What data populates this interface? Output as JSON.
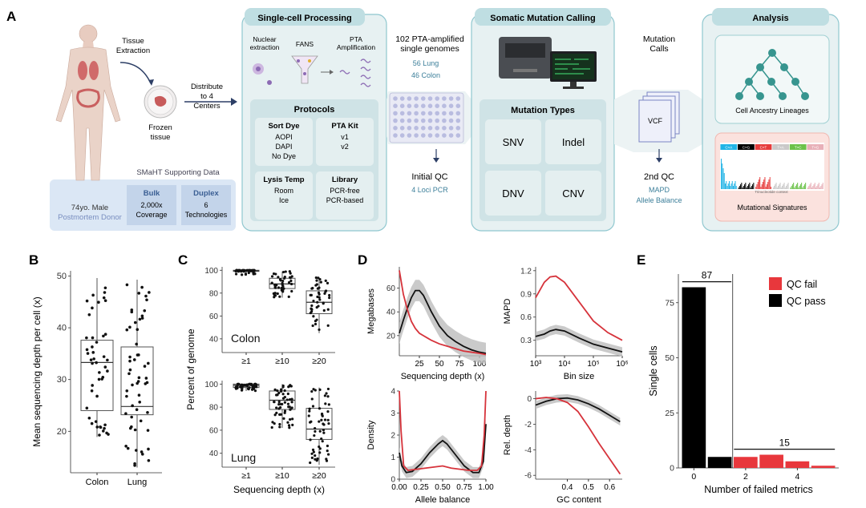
{
  "panels": {
    "a": "A",
    "b": "B",
    "c": "C",
    "d": "D",
    "e": "E"
  },
  "workflow": {
    "tissue_extraction": [
      "Tissue",
      "Extraction"
    ],
    "frozen_tissue": [
      "Frozen",
      "tissue"
    ],
    "distribute": [
      "Distribute",
      "to 4",
      "Centers"
    ],
    "donor": [
      "74yo. Male",
      "Postmortem Donor"
    ],
    "smaht_title": "SMaHT Supporting Data",
    "bulk": {
      "title": "Bulk",
      "lines": [
        "2,000x",
        "Coverage"
      ]
    },
    "duplex": {
      "title": "Duplex",
      "lines": [
        "6",
        "Technologies"
      ]
    },
    "single_cell_title": "Single-cell Processing",
    "nuclear": [
      "Nuclear",
      "extraction"
    ],
    "fans": "FANS",
    "pta": [
      "PTA",
      "Amplification"
    ],
    "protocols_title": "Protocols",
    "protocols": [
      {
        "title": "Sort Dye",
        "lines": [
          "AOPI",
          "DAPI",
          "No Dye"
        ]
      },
      {
        "title": "PTA Kit",
        "lines": [
          "v1",
          "v2"
        ]
      },
      {
        "title": "Lysis Temp",
        "lines": [
          "Room",
          "Ice"
        ]
      },
      {
        "title": "Library",
        "lines": [
          "PCR-free",
          "PCR-based"
        ]
      }
    ],
    "genomes": [
      "102 PTA-amplified",
      "single genomes"
    ],
    "genome_counts": [
      "56 Lung",
      "46 Colon"
    ],
    "initial_qc": "Initial QC",
    "initial_qc_sub": "4 Loci PCR",
    "somatic_title": "Somatic Mutation Calling",
    "mutation_types_title": "Mutation Types",
    "mutation_types": [
      "SNV",
      "Indel",
      "DNV",
      "CNV"
    ],
    "mutation_calls": [
      "Mutation",
      "Calls"
    ],
    "vcf": "VCF",
    "second_qc": "2nd QC",
    "second_qc_sub": [
      "MAPD",
      "Allele Balance"
    ],
    "analysis_title": "Analysis",
    "lineage": "Cell Ancestry Lineages",
    "signatures": "Mutational Signatures",
    "sig_axis": "Trinucleotide context",
    "sig_tabs": [
      "C>A",
      "C>G",
      "C>T",
      "T>A",
      "T>C",
      "T>G"
    ],
    "colors": {
      "teal": "#8fc7cf",
      "box_bg": "#e7f1f2",
      "inner_box": "#d3e4e6",
      "lineage": "#37958f",
      "donor_bg": "#dbe7f5",
      "sig_bg": "#fbe2de"
    }
  },
  "chart_data": [
    {
      "panel": "B",
      "type": "box",
      "categories": [
        "Colon",
        "Lung"
      ],
      "ylabel": "Mean sequencing depth per cell (x)",
      "ylim": [
        12,
        51
      ],
      "yticks": [
        20,
        30,
        40,
        50
      ],
      "boxes": [
        {
          "q1": 24,
          "median": 33.3,
          "q3": 37.6,
          "low": 18.9,
          "high": 49.6
        },
        {
          "q1": 23.2,
          "median": 24.8,
          "q3": 36.3,
          "low": 13,
          "high": 49.3
        }
      ]
    },
    {
      "panel": "C-Colon",
      "type": "box",
      "label": "Colon",
      "categories": [
        "≥1",
        "≥10",
        "≥20"
      ],
      "ylim": [
        28,
        103
      ],
      "yticks": [
        40,
        60,
        80,
        100
      ],
      "boxes": [
        {
          "q1": 99,
          "median": 99.5,
          "q3": 100,
          "low": 96,
          "high": 100
        },
        {
          "q1": 84,
          "median": 88,
          "q3": 93,
          "low": 76,
          "high": 99
        },
        {
          "q1": 62,
          "median": 72,
          "q3": 82,
          "low": 45,
          "high": 94
        }
      ]
    },
    {
      "panel": "C-Lung",
      "type": "box",
      "label": "Lung",
      "categories": [
        "≥1",
        "≥10",
        "≥20"
      ],
      "ylim": [
        28,
        103
      ],
      "yticks": [
        40,
        60,
        80,
        100
      ],
      "xlabel": "Sequencing depth (x)",
      "boxes": [
        {
          "q1": 97,
          "median": 99,
          "q3": 100,
          "low": 94,
          "high": 100
        },
        {
          "q1": 78,
          "median": 86,
          "q3": 94,
          "low": 62,
          "high": 100
        },
        {
          "q1": 52,
          "median": 61,
          "q3": 79,
          "low": 30,
          "high": 97
        }
      ]
    },
    {
      "panel": "D1",
      "type": "line",
      "xlabel": "Sequencing depth (x)",
      "ylabel": "Megabases",
      "xlim": [
        0,
        108
      ],
      "ylim": [
        3,
        78
      ],
      "xticks": [
        25,
        50,
        75,
        100
      ],
      "yticks": [
        20,
        40,
        60
      ],
      "series": [
        {
          "color": "black",
          "x": [
            0,
            5,
            10,
            15,
            20,
            25,
            30,
            35,
            40,
            50,
            60,
            70,
            80,
            90,
            100,
            108
          ],
          "y": [
            22,
            33,
            43,
            52,
            58,
            58,
            54,
            47,
            40,
            28,
            20,
            15,
            11,
            8,
            6,
            5
          ]
        },
        {
          "color": "red",
          "x": [
            0,
            5,
            10,
            15,
            20,
            25,
            30,
            35,
            40,
            50,
            60,
            70,
            80,
            90,
            100,
            108
          ],
          "y": [
            75,
            55,
            42,
            32,
            26,
            22,
            20,
            18,
            16,
            13,
            11,
            9,
            7,
            6,
            5,
            4
          ]
        }
      ]
    },
    {
      "panel": "D2",
      "type": "line",
      "xlabel": "Bin size",
      "ylabel": "MAPD",
      "xscale": "log",
      "xlim": [
        3,
        6
      ],
      "xticks": [
        "10^3",
        "10^4",
        "10^5",
        "10^6"
      ],
      "ylim": [
        0.1,
        1.25
      ],
      "yticks": [
        0.3,
        0.6,
        0.9,
        1.2
      ],
      "series": [
        {
          "color": "red",
          "x": [
            3,
            3.3,
            3.5,
            3.7,
            4,
            4.5,
            5,
            5.5,
            6
          ],
          "y": [
            0.85,
            1.05,
            1.12,
            1.13,
            1.05,
            0.8,
            0.55,
            0.4,
            0.3
          ]
        },
        {
          "color": "black",
          "x": [
            3,
            3.3,
            3.5,
            3.7,
            4,
            4.5,
            5,
            5.5,
            6
          ],
          "y": [
            0.35,
            0.38,
            0.42,
            0.44,
            0.42,
            0.33,
            0.25,
            0.2,
            0.15
          ]
        }
      ]
    },
    {
      "panel": "D3",
      "type": "line",
      "xlabel": "Allele balance",
      "ylabel": "Density",
      "xlim": [
        0,
        1
      ],
      "xticks": [
        "0.00",
        "0.25",
        "0.50",
        "0.75",
        "1.00"
      ],
      "ylim": [
        0,
        4
      ],
      "yticks": [
        0,
        1,
        2,
        3,
        4
      ],
      "series": [
        {
          "color": "black",
          "x": [
            0,
            0.03,
            0.08,
            0.15,
            0.25,
            0.35,
            0.45,
            0.5,
            0.55,
            0.65,
            0.75,
            0.85,
            0.92,
            0.97,
            1
          ],
          "y": [
            1.2,
            0.6,
            0.3,
            0.35,
            0.7,
            1.2,
            1.6,
            1.75,
            1.6,
            1.1,
            0.6,
            0.3,
            0.3,
            0.8,
            2.5
          ]
        },
        {
          "color": "red",
          "x": [
            0,
            0.02,
            0.05,
            0.1,
            0.2,
            0.3,
            0.4,
            0.5,
            0.6,
            0.7,
            0.8,
            0.9,
            0.95,
            0.98,
            1
          ],
          "y": [
            4,
            2.2,
            0.6,
            0.4,
            0.45,
            0.5,
            0.55,
            0.6,
            0.5,
            0.45,
            0.4,
            0.4,
            0.6,
            2.0,
            4
          ]
        }
      ]
    },
    {
      "panel": "D4",
      "type": "line",
      "xlabel": "GC content",
      "ylabel": "Rel. depth",
      "xlim": [
        0.25,
        0.66
      ],
      "xticks": [
        0.4,
        0.5,
        0.6
      ],
      "ylim": [
        -6.3,
        0.6
      ],
      "yticks": [
        0,
        -2,
        -4,
        -6
      ],
      "series": [
        {
          "color": "black",
          "x": [
            0.25,
            0.3,
            0.35,
            0.4,
            0.45,
            0.5,
            0.55,
            0.6,
            0.65
          ],
          "y": [
            -0.5,
            -0.2,
            0,
            0.05,
            -0.1,
            -0.4,
            -0.8,
            -1.3,
            -1.8
          ]
        },
        {
          "color": "red",
          "x": [
            0.25,
            0.3,
            0.35,
            0.4,
            0.45,
            0.5,
            0.55,
            0.6,
            0.65
          ],
          "y": [
            0,
            0.1,
            0,
            -0.3,
            -1.0,
            -2.2,
            -3.5,
            -4.7,
            -5.9
          ]
        }
      ]
    },
    {
      "panel": "E",
      "type": "bar",
      "xlabel": "Number of failed metrics",
      "ylabel": "Single cells",
      "xlim": [
        -0.6,
        5.6
      ],
      "ylim": [
        0,
        88
      ],
      "yticks": [
        0,
        25,
        50,
        75
      ],
      "xticks": [
        0,
        2,
        4
      ],
      "bars": [
        {
          "x": 0,
          "value": 82,
          "series": "QC pass"
        },
        {
          "x": 1,
          "value": 5,
          "series": "QC pass"
        },
        {
          "x": 2,
          "value": 5,
          "series": "QC fail"
        },
        {
          "x": 3,
          "value": 6,
          "series": "QC fail"
        },
        {
          "x": 4,
          "value": 3,
          "series": "QC fail"
        },
        {
          "x": 5,
          "value": 1,
          "series": "QC fail"
        }
      ],
      "annotations": [
        {
          "text": "87",
          "x_from": -0.45,
          "x_to": 1.45
        },
        {
          "text": "15",
          "x_from": 1.55,
          "x_to": 5.45
        }
      ],
      "legend": [
        {
          "label": "QC fail",
          "color": "#e8373c"
        },
        {
          "label": "QC pass",
          "color": "#000000"
        }
      ],
      "legend_position": "top-right"
    }
  ]
}
